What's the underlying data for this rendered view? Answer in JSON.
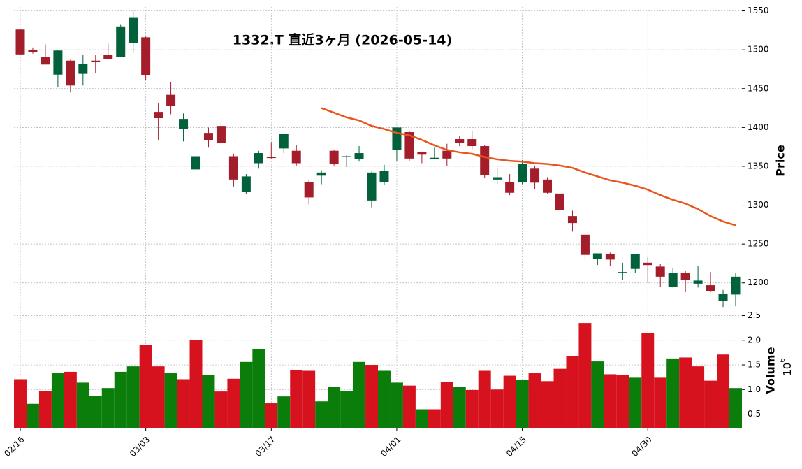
{
  "chart_data": {
    "type": "candlestick",
    "title": "1332.T 直近3ヶ月 (2026-05-14)",
    "categories": [
      "02/16",
      null,
      null,
      null,
      null,
      null,
      null,
      null,
      null,
      null,
      "03/03",
      null,
      null,
      null,
      null,
      null,
      null,
      null,
      null,
      null,
      "03/17",
      null,
      null,
      null,
      null,
      null,
      null,
      null,
      null,
      null,
      "04/01",
      null,
      null,
      null,
      null,
      null,
      null,
      null,
      null,
      null,
      "04/15",
      null,
      null,
      null,
      null,
      null,
      null,
      null,
      null,
      null,
      "04/30",
      null,
      null,
      null,
      null,
      null,
      null,
      null
    ],
    "open": [
      1526,
      1500,
      1491,
      1468,
      1486,
      1469,
      1486,
      1493,
      1491,
      1509,
      1516,
      1420,
      1442,
      1398,
      1346,
      1393,
      1402,
      1363,
      1317,
      1354,
      1362,
      1373,
      1370,
      1330,
      1338,
      1370,
      1362,
      1359,
      1306,
      1330,
      1371,
      1394,
      1368,
      1360,
      1370,
      1385,
      1385,
      1376,
      1333,
      1330,
      1330,
      1347,
      1333,
      1315,
      1286,
      1262,
      1231,
      1237,
      1213,
      1218,
      1226,
      1221,
      1195,
      1213,
      1199,
      1197,
      1177,
      1185
    ],
    "high": [
      1527,
      1503,
      1507,
      1500,
      1487,
      1493,
      1493,
      1508,
      1532,
      1550,
      1517,
      1431,
      1458,
      1418,
      1372,
      1400,
      1407,
      1366,
      1340,
      1370,
      1381,
      1392,
      1377,
      1333,
      1345,
      1371,
      1364,
      1376,
      1343,
      1352,
      1400,
      1396,
      1369,
      1374,
      1379,
      1389,
      1395,
      1377,
      1348,
      1340,
      1358,
      1351,
      1336,
      1321,
      1293,
      1263,
      1238,
      1239,
      1226,
      1237,
      1234,
      1224,
      1219,
      1215,
      1222,
      1214,
      1191,
      1213
    ],
    "low": [
      1493,
      1495,
      1481,
      1452,
      1445,
      1454,
      1470,
      1487,
      1491,
      1496,
      1461,
      1384,
      1417,
      1382,
      1332,
      1374,
      1377,
      1324,
      1314,
      1347,
      1360,
      1367,
      1351,
      1301,
      1327,
      1351,
      1349,
      1356,
      1297,
      1326,
      1357,
      1357,
      1354,
      1359,
      1350,
      1376,
      1372,
      1335,
      1327,
      1313,
      1327,
      1321,
      1315,
      1285,
      1266,
      1231,
      1223,
      1222,
      1204,
      1213,
      1200,
      1195,
      1194,
      1188,
      1194,
      1188,
      1169,
      1170
    ],
    "close": [
      1494,
      1497,
      1481,
      1499,
      1454,
      1482,
      1485,
      1488,
      1530,
      1541,
      1467,
      1412,
      1428,
      1411,
      1363,
      1384,
      1380,
      1333,
      1337,
      1367,
      1361,
      1392,
      1354,
      1310,
      1342,
      1353,
      1363,
      1367,
      1342,
      1344,
      1400,
      1360,
      1365,
      1361,
      1360,
      1380,
      1376,
      1339,
      1336,
      1316,
      1353,
      1329,
      1316,
      1294,
      1277,
      1236,
      1238,
      1230,
      1214,
      1237,
      1223,
      1208,
      1213,
      1204,
      1203,
      1189,
      1186,
      1208
    ],
    "ylim": [
      1162,
      1555
    ],
    "yticks": [
      1200,
      1250,
      1300,
      1350,
      1400,
      1450,
      1500,
      1550
    ],
    "ylabel": "Price",
    "up_color": "#00613a",
    "down_color": "#a31d2b",
    "ma": {
      "color": "#e8561e",
      "values": [
        null,
        null,
        null,
        null,
        null,
        null,
        null,
        null,
        null,
        null,
        null,
        null,
        null,
        null,
        null,
        null,
        null,
        null,
        null,
        null,
        null,
        null,
        null,
        null,
        1425,
        1419,
        1413,
        1409,
        1402,
        1398,
        1393,
        1390,
        1384,
        1377,
        1371,
        1368,
        1366,
        1362,
        1359,
        1357,
        1356,
        1354,
        1353,
        1351,
        1348,
        1342,
        1337,
        1332,
        1329,
        1325,
        1320,
        1313,
        1307,
        1302,
        1295,
        1286,
        1279,
        1274
      ]
    },
    "volume": {
      "values": [
        1.21,
        0.71,
        0.97,
        1.33,
        1.36,
        1.14,
        0.87,
        1.03,
        1.36,
        1.47,
        1.9,
        1.47,
        1.33,
        1.21,
        2.01,
        1.29,
        0.96,
        1.22,
        1.56,
        1.82,
        0.72,
        0.86,
        1.39,
        1.38,
        0.76,
        1.06,
        0.97,
        1.56,
        1.5,
        1.38,
        1.14,
        1.08,
        0.6,
        0.6,
        1.15,
        1.06,
        0.99,
        1.38,
        1.0,
        1.28,
        1.19,
        1.33,
        1.17,
        1.42,
        1.68,
        2.35,
        1.57,
        1.31,
        1.29,
        1.24,
        2.15,
        1.24,
        1.63,
        1.65,
        1.47,
        1.18,
        1.71,
        1.03
      ],
      "ylim": [
        0.21,
        2.55
      ],
      "yticks": [
        0.5,
        {
          "value": 1,
          "label": "1.0"
        },
        1.5,
        {
          "value": 2,
          "label": "2.0"
        },
        2.5
      ],
      "ylabel": "Volume",
      "scale_base": "10",
      "scale_exp": "6",
      "up_color": "#0a7d0a",
      "down_color": "#d5121e"
    },
    "grid": true
  }
}
